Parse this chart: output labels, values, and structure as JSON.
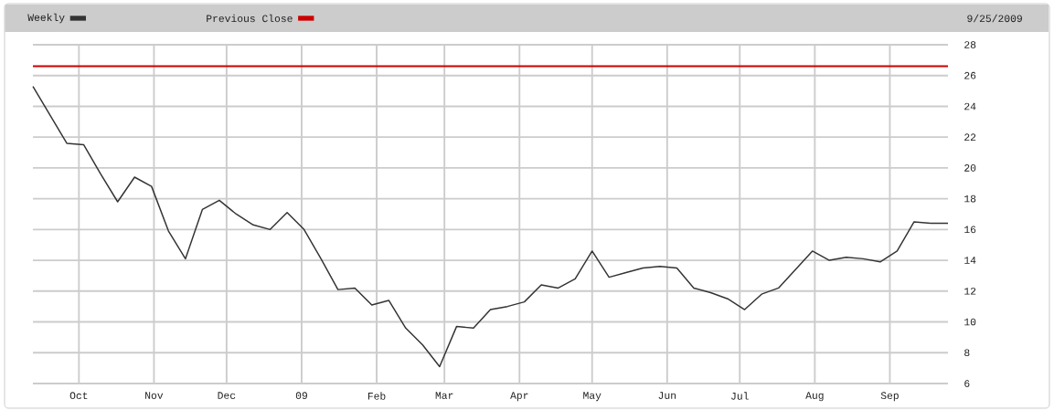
{
  "chart_data": {
    "type": "line",
    "legend": "top",
    "grid": true,
    "annotations": [
      "9/25/2009"
    ],
    "xlim": [
      "2008-09-12",
      "2009-09-25"
    ],
    "ylim": [
      6,
      28
    ],
    "yticks": [
      6,
      8,
      10,
      12,
      14,
      16,
      18,
      20,
      22,
      24,
      26,
      28
    ],
    "xticks": [
      {
        "value": "2008-10-01",
        "label": "Oct"
      },
      {
        "value": "2008-11-01",
        "label": "Nov"
      },
      {
        "value": "2008-12-01",
        "label": "Dec"
      },
      {
        "value": "2009-01-01",
        "label": "09"
      },
      {
        "value": "2009-02-01",
        "label": "Feb"
      },
      {
        "value": "2009-03-01",
        "label": "Mar"
      },
      {
        "value": "2009-04-01",
        "label": "Apr"
      },
      {
        "value": "2009-05-01",
        "label": "May"
      },
      {
        "value": "2009-06-01",
        "label": "Jun"
      },
      {
        "value": "2009-07-01",
        "label": "Jul"
      },
      {
        "value": "2009-08-01",
        "label": "Aug"
      },
      {
        "value": "2009-09-01",
        "label": "Sep"
      }
    ],
    "x": [
      "2008-09-12",
      "2008-09-26",
      "2008-10-03",
      "2008-10-10",
      "2008-10-17",
      "2008-10-24",
      "2008-10-31",
      "2008-11-07",
      "2008-11-14",
      "2008-11-21",
      "2008-11-28",
      "2008-12-05",
      "2008-12-12",
      "2008-12-19",
      "2008-12-26",
      "2009-01-02",
      "2009-01-09",
      "2009-01-16",
      "2009-01-23",
      "2009-01-30",
      "2009-02-06",
      "2009-02-13",
      "2009-02-20",
      "2009-02-27",
      "2009-03-06",
      "2009-03-13",
      "2009-03-20",
      "2009-03-27",
      "2009-04-03",
      "2009-04-10",
      "2009-04-17",
      "2009-04-24",
      "2009-05-01",
      "2009-05-08",
      "2009-05-15",
      "2009-05-22",
      "2009-05-29",
      "2009-06-05",
      "2009-06-12",
      "2009-06-19",
      "2009-06-26",
      "2009-07-03",
      "2009-07-10",
      "2009-07-17",
      "2009-07-24",
      "2009-07-31",
      "2009-08-07",
      "2009-08-14",
      "2009-08-21",
      "2009-08-28",
      "2009-09-04",
      "2009-09-11",
      "2009-09-18",
      "2009-09-25"
    ],
    "series": [
      {
        "name": "Weekly",
        "color": "#333333",
        "values": [
          25.3,
          21.6,
          21.5,
          19.6,
          17.8,
          19.4,
          18.8,
          15.9,
          14.1,
          17.3,
          17.9,
          17.0,
          16.3,
          16.0,
          17.1,
          16.0,
          14.1,
          12.1,
          12.2,
          11.1,
          11.4,
          9.6,
          8.5,
          7.1,
          9.7,
          9.6,
          10.8,
          11.0,
          11.3,
          12.4,
          12.2,
          12.8,
          14.6,
          12.9,
          13.2,
          13.5,
          13.6,
          13.5,
          12.2,
          11.9,
          11.5,
          10.8,
          11.8,
          12.2,
          13.4,
          14.6,
          14.0,
          14.2,
          14.1,
          13.9,
          14.6,
          16.5,
          16.4,
          16.4
        ]
      }
    ],
    "ref_lines": [
      {
        "axis": "y",
        "value": 26.6,
        "label": "Previous Close",
        "color": "#cc0000"
      }
    ]
  }
}
